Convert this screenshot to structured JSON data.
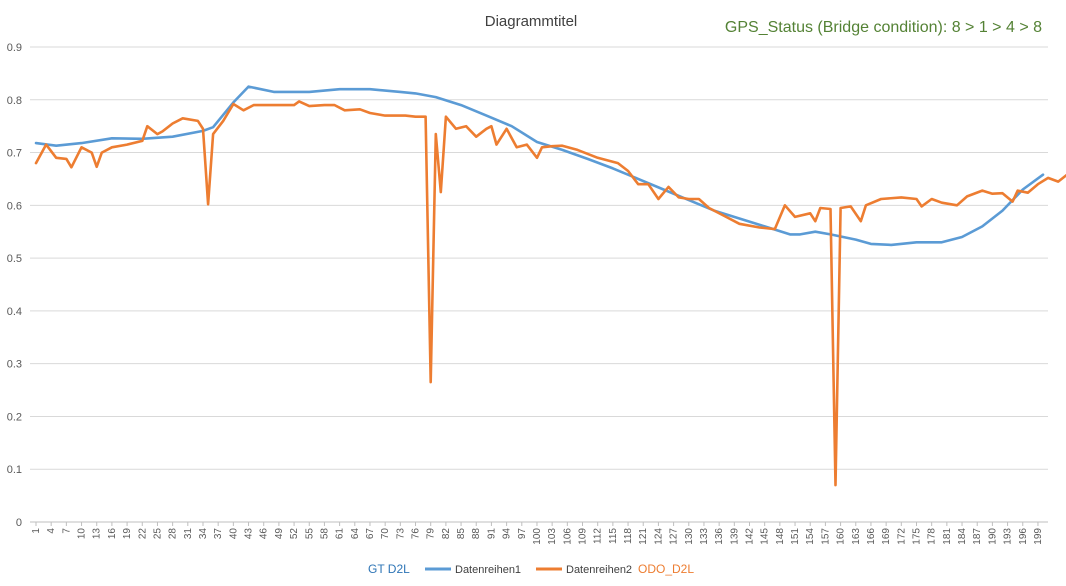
{
  "chart_data": {
    "type": "line",
    "title": "Diagrammtitel",
    "annotation": "GPS_Status (Bridge condition): 8 > 1 > 4 > 8",
    "legend_extra_left": "GT  D2L",
    "legend_extra_right": "ODO_D2L",
    "y_ticks": [
      "0",
      "0.1",
      "0.2",
      "0.3",
      "0.4",
      "0.5",
      "0.6",
      "0.7",
      "0.8",
      "0.9"
    ],
    "ylim": [
      0,
      0.9
    ],
    "grid": true,
    "legend_position": "bottom",
    "x_range": [
      1,
      200
    ],
    "x_tick_labels": [
      "1",
      "4",
      "7",
      "10",
      "13",
      "16",
      "19",
      "22",
      "25",
      "28",
      "31",
      "34",
      "37",
      "40",
      "43",
      "46",
      "49",
      "52",
      "55",
      "58",
      "61",
      "64",
      "67",
      "70",
      "73",
      "76",
      "79",
      "82",
      "85",
      "88",
      "91",
      "94",
      "97",
      "100",
      "103",
      "106",
      "109",
      "112",
      "115",
      "118",
      "121",
      "124",
      "127",
      "130",
      "133",
      "136",
      "139",
      "142",
      "145",
      "148",
      "151",
      "154",
      "157",
      "160",
      "163",
      "166",
      "169",
      "172",
      "175",
      "178",
      "181",
      "184",
      "187",
      "190",
      "193",
      "196",
      "199"
    ],
    "series": [
      {
        "name": "Datenreihen1",
        "color": "#5B9BD5",
        "points": [
          [
            1,
            0.718
          ],
          [
            5,
            0.713
          ],
          [
            10,
            0.718
          ],
          [
            16,
            0.727
          ],
          [
            22,
            0.726
          ],
          [
            28,
            0.73
          ],
          [
            34,
            0.741
          ],
          [
            36,
            0.748
          ],
          [
            40,
            0.795
          ],
          [
            43,
            0.825
          ],
          [
            48,
            0.815
          ],
          [
            55,
            0.815
          ],
          [
            61,
            0.82
          ],
          [
            67,
            0.82
          ],
          [
            73,
            0.815
          ],
          [
            76,
            0.812
          ],
          [
            80,
            0.805
          ],
          [
            85,
            0.79
          ],
          [
            90,
            0.77
          ],
          [
            95,
            0.75
          ],
          [
            100,
            0.72
          ],
          [
            105,
            0.705
          ],
          [
            110,
            0.688
          ],
          [
            115,
            0.67
          ],
          [
            120,
            0.65
          ],
          [
            125,
            0.63
          ],
          [
            130,
            0.61
          ],
          [
            135,
            0.59
          ],
          [
            140,
            0.575
          ],
          [
            145,
            0.56
          ],
          [
            150,
            0.545
          ],
          [
            152,
            0.545
          ],
          [
            155,
            0.55
          ],
          [
            158,
            0.545
          ],
          [
            163,
            0.535
          ],
          [
            166,
            0.527
          ],
          [
            170,
            0.525
          ],
          [
            175,
            0.53
          ],
          [
            180,
            0.53
          ],
          [
            184,
            0.54
          ],
          [
            188,
            0.56
          ],
          [
            192,
            0.59
          ],
          [
            196,
            0.63
          ],
          [
            200,
            0.658
          ]
        ]
      },
      {
        "name": "Datenreihen2",
        "color": "#ED7D31",
        "points": [
          [
            1,
            0.68
          ],
          [
            3,
            0.715
          ],
          [
            5,
            0.69
          ],
          [
            7,
            0.688
          ],
          [
            8,
            0.672
          ],
          [
            10,
            0.71
          ],
          [
            12,
            0.7
          ],
          [
            13,
            0.673
          ],
          [
            14,
            0.7
          ],
          [
            16,
            0.71
          ],
          [
            19,
            0.715
          ],
          [
            22,
            0.722
          ],
          [
            23,
            0.75
          ],
          [
            25,
            0.735
          ],
          [
            26,
            0.74
          ],
          [
            28,
            0.755
          ],
          [
            30,
            0.765
          ],
          [
            33,
            0.76
          ],
          [
            34,
            0.745
          ],
          [
            35,
            0.602
          ],
          [
            36,
            0.735
          ],
          [
            38,
            0.76
          ],
          [
            40,
            0.792
          ],
          [
            42,
            0.78
          ],
          [
            44,
            0.79
          ],
          [
            47,
            0.79
          ],
          [
            52,
            0.79
          ],
          [
            53,
            0.797
          ],
          [
            55,
            0.788
          ],
          [
            58,
            0.79
          ],
          [
            60,
            0.79
          ],
          [
            62,
            0.78
          ],
          [
            65,
            0.782
          ],
          [
            67,
            0.775
          ],
          [
            70,
            0.77
          ],
          [
            74,
            0.77
          ],
          [
            76,
            0.768
          ],
          [
            78,
            0.768
          ],
          [
            79,
            0.265
          ],
          [
            80,
            0.735
          ],
          [
            81,
            0.625
          ],
          [
            82,
            0.768
          ],
          [
            84,
            0.745
          ],
          [
            86,
            0.75
          ],
          [
            88,
            0.73
          ],
          [
            90,
            0.745
          ],
          [
            91,
            0.75
          ],
          [
            92,
            0.715
          ],
          [
            94,
            0.745
          ],
          [
            96,
            0.71
          ],
          [
            98,
            0.715
          ],
          [
            100,
            0.69
          ],
          [
            101,
            0.71
          ],
          [
            103,
            0.712
          ],
          [
            105,
            0.713
          ],
          [
            108,
            0.705
          ],
          [
            112,
            0.69
          ],
          [
            116,
            0.68
          ],
          [
            118,
            0.665
          ],
          [
            120,
            0.64
          ],
          [
            122,
            0.64
          ],
          [
            124,
            0.612
          ],
          [
            126,
            0.635
          ],
          [
            128,
            0.615
          ],
          [
            130,
            0.612
          ],
          [
            132,
            0.612
          ],
          [
            134,
            0.595
          ],
          [
            137,
            0.58
          ],
          [
            140,
            0.565
          ],
          [
            144,
            0.558
          ],
          [
            147,
            0.555
          ],
          [
            149,
            0.6
          ],
          [
            151,
            0.578
          ],
          [
            154,
            0.585
          ],
          [
            155,
            0.57
          ],
          [
            156,
            0.595
          ],
          [
            158,
            0.593
          ],
          [
            159,
            0.07
          ],
          [
            160,
            0.595
          ],
          [
            162,
            0.598
          ],
          [
            164,
            0.57
          ],
          [
            165,
            0.6
          ],
          [
            168,
            0.612
          ],
          [
            172,
            0.615
          ],
          [
            175,
            0.612
          ],
          [
            176,
            0.598
          ],
          [
            178,
            0.612
          ],
          [
            180,
            0.605
          ],
          [
            183,
            0.6
          ],
          [
            185,
            0.617
          ],
          [
            188,
            0.628
          ],
          [
            190,
            0.622
          ],
          [
            192,
            0.623
          ],
          [
            194,
            0.607
          ],
          [
            195,
            0.628
          ],
          [
            197,
            0.624
          ],
          [
            199,
            0.64
          ],
          [
            201,
            0.652
          ],
          [
            203,
            0.645
          ],
          [
            205,
            0.66
          ],
          [
            207,
            0.662
          ]
        ]
      }
    ]
  }
}
